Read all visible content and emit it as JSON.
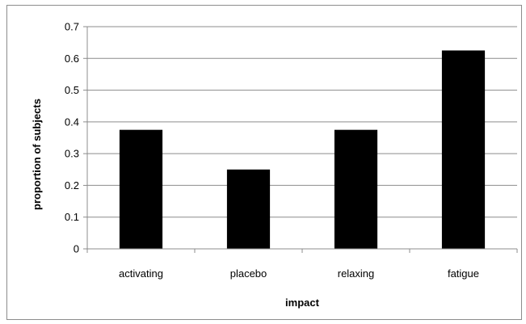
{
  "chart_data": {
    "type": "bar",
    "title": "",
    "xlabel": "impact",
    "ylabel": "proportion of subjects",
    "categories": [
      "activating",
      "placebo",
      "relaxing",
      "fatigue"
    ],
    "values": [
      0.375,
      0.25,
      0.375,
      0.625
    ],
    "ylim": [
      0,
      0.7
    ],
    "yticks": [
      "0",
      "0.1",
      "0.2",
      "0.3",
      "0.4",
      "0.5",
      "0.6",
      "0.7"
    ],
    "grid": true,
    "legend": "none",
    "bar_color": "#000000",
    "grid_color": "#8c8c8c"
  }
}
